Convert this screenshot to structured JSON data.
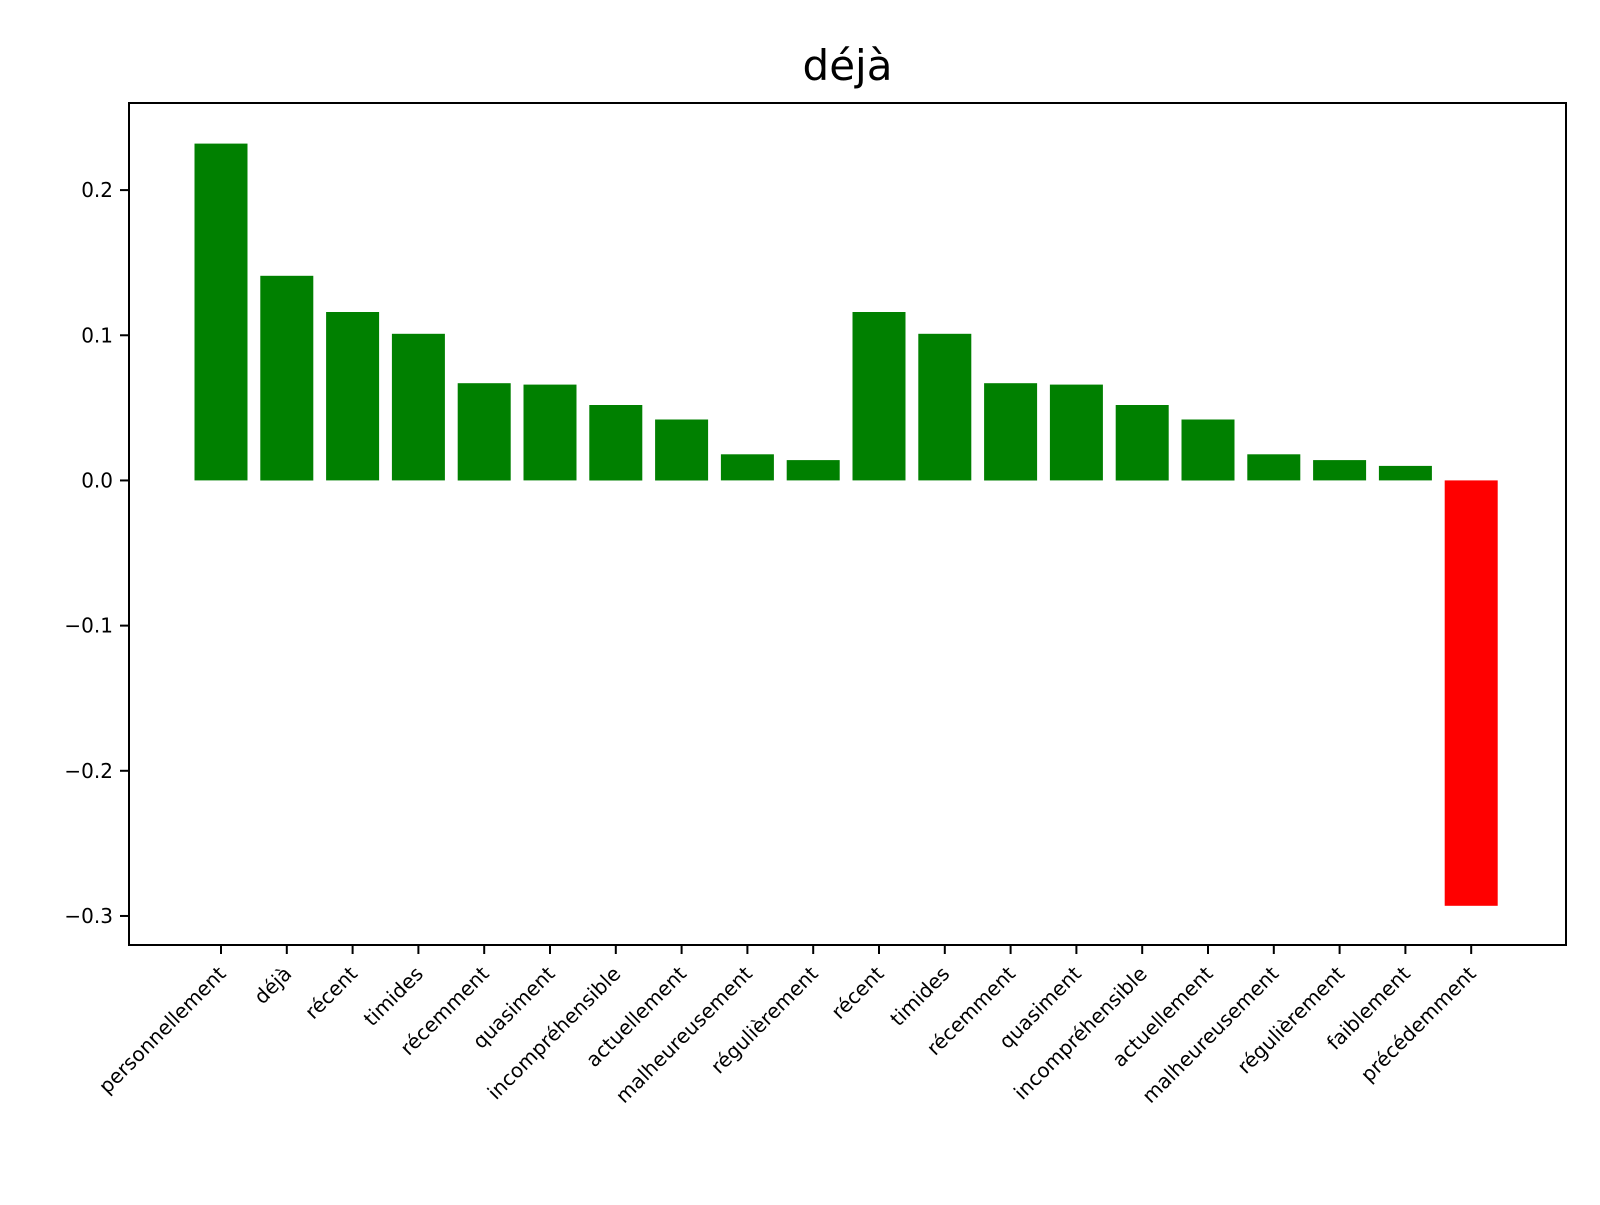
{
  "chart_data": {
    "type": "bar",
    "title": "déjà",
    "xlabel": "",
    "ylabel": "",
    "ylim": [
      -0.32,
      0.26
    ],
    "yticks": [
      0.2,
      0.1,
      0.0,
      -0.1,
      -0.2,
      -0.3
    ],
    "ytick_labels": [
      "0.2",
      "0.1",
      "0.0",
      "−0.1",
      "−0.2",
      "−0.3"
    ],
    "grid": false,
    "positive_color": "#008000",
    "negative_color": "#ff0000",
    "categories": [
      "personnellement",
      "déjà",
      "récent",
      "timides",
      "récemment",
      "quasiment",
      "incompréhensible",
      "actuellement",
      "malheureusement",
      "régulièrement",
      "récent",
      "timides",
      "récemment",
      "quasiment",
      "incompréhensible",
      "actuellement",
      "malheureusement",
      "régulièrement",
      "faiblement",
      "précédemment"
    ],
    "values": [
      0.232,
      0.141,
      0.116,
      0.101,
      0.067,
      0.066,
      0.052,
      0.042,
      0.018,
      0.014,
      0.116,
      0.101,
      0.067,
      0.066,
      0.052,
      0.042,
      0.018,
      0.014,
      0.01,
      -0.293
    ]
  }
}
